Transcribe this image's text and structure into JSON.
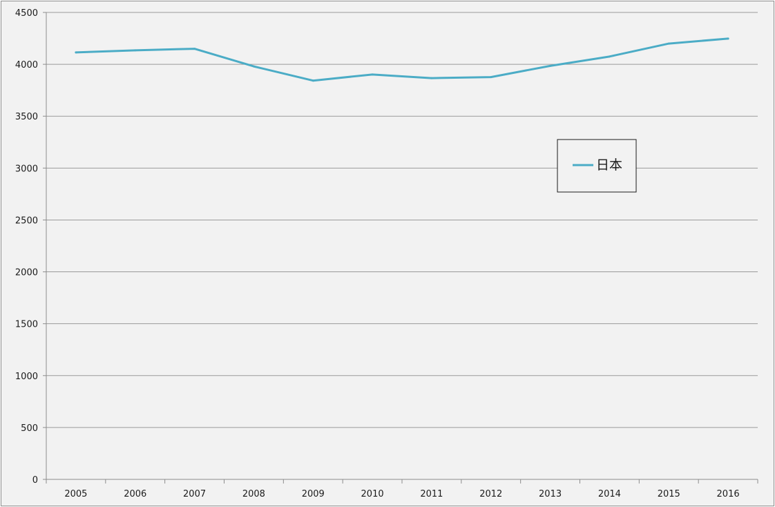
{
  "chart_data": {
    "type": "line",
    "title": "",
    "xlabel": "",
    "ylabel": "",
    "categories": [
      "2005",
      "2006",
      "2007",
      "2008",
      "2009",
      "2010",
      "2011",
      "2012",
      "2013",
      "2014",
      "2015",
      "2016"
    ],
    "series": [
      {
        "name": "日本",
        "color": "#4bacc6",
        "values": [
          4115,
          4135,
          4150,
          3980,
          3843,
          3902,
          3867,
          3877,
          3985,
          4075,
          4200,
          4248
        ]
      }
    ],
    "ylim": [
      0,
      4500
    ],
    "yticks": [
      0,
      500,
      1000,
      1500,
      2000,
      2500,
      3000,
      3500,
      4000,
      4500
    ],
    "grid": true,
    "legend_position": "right"
  }
}
